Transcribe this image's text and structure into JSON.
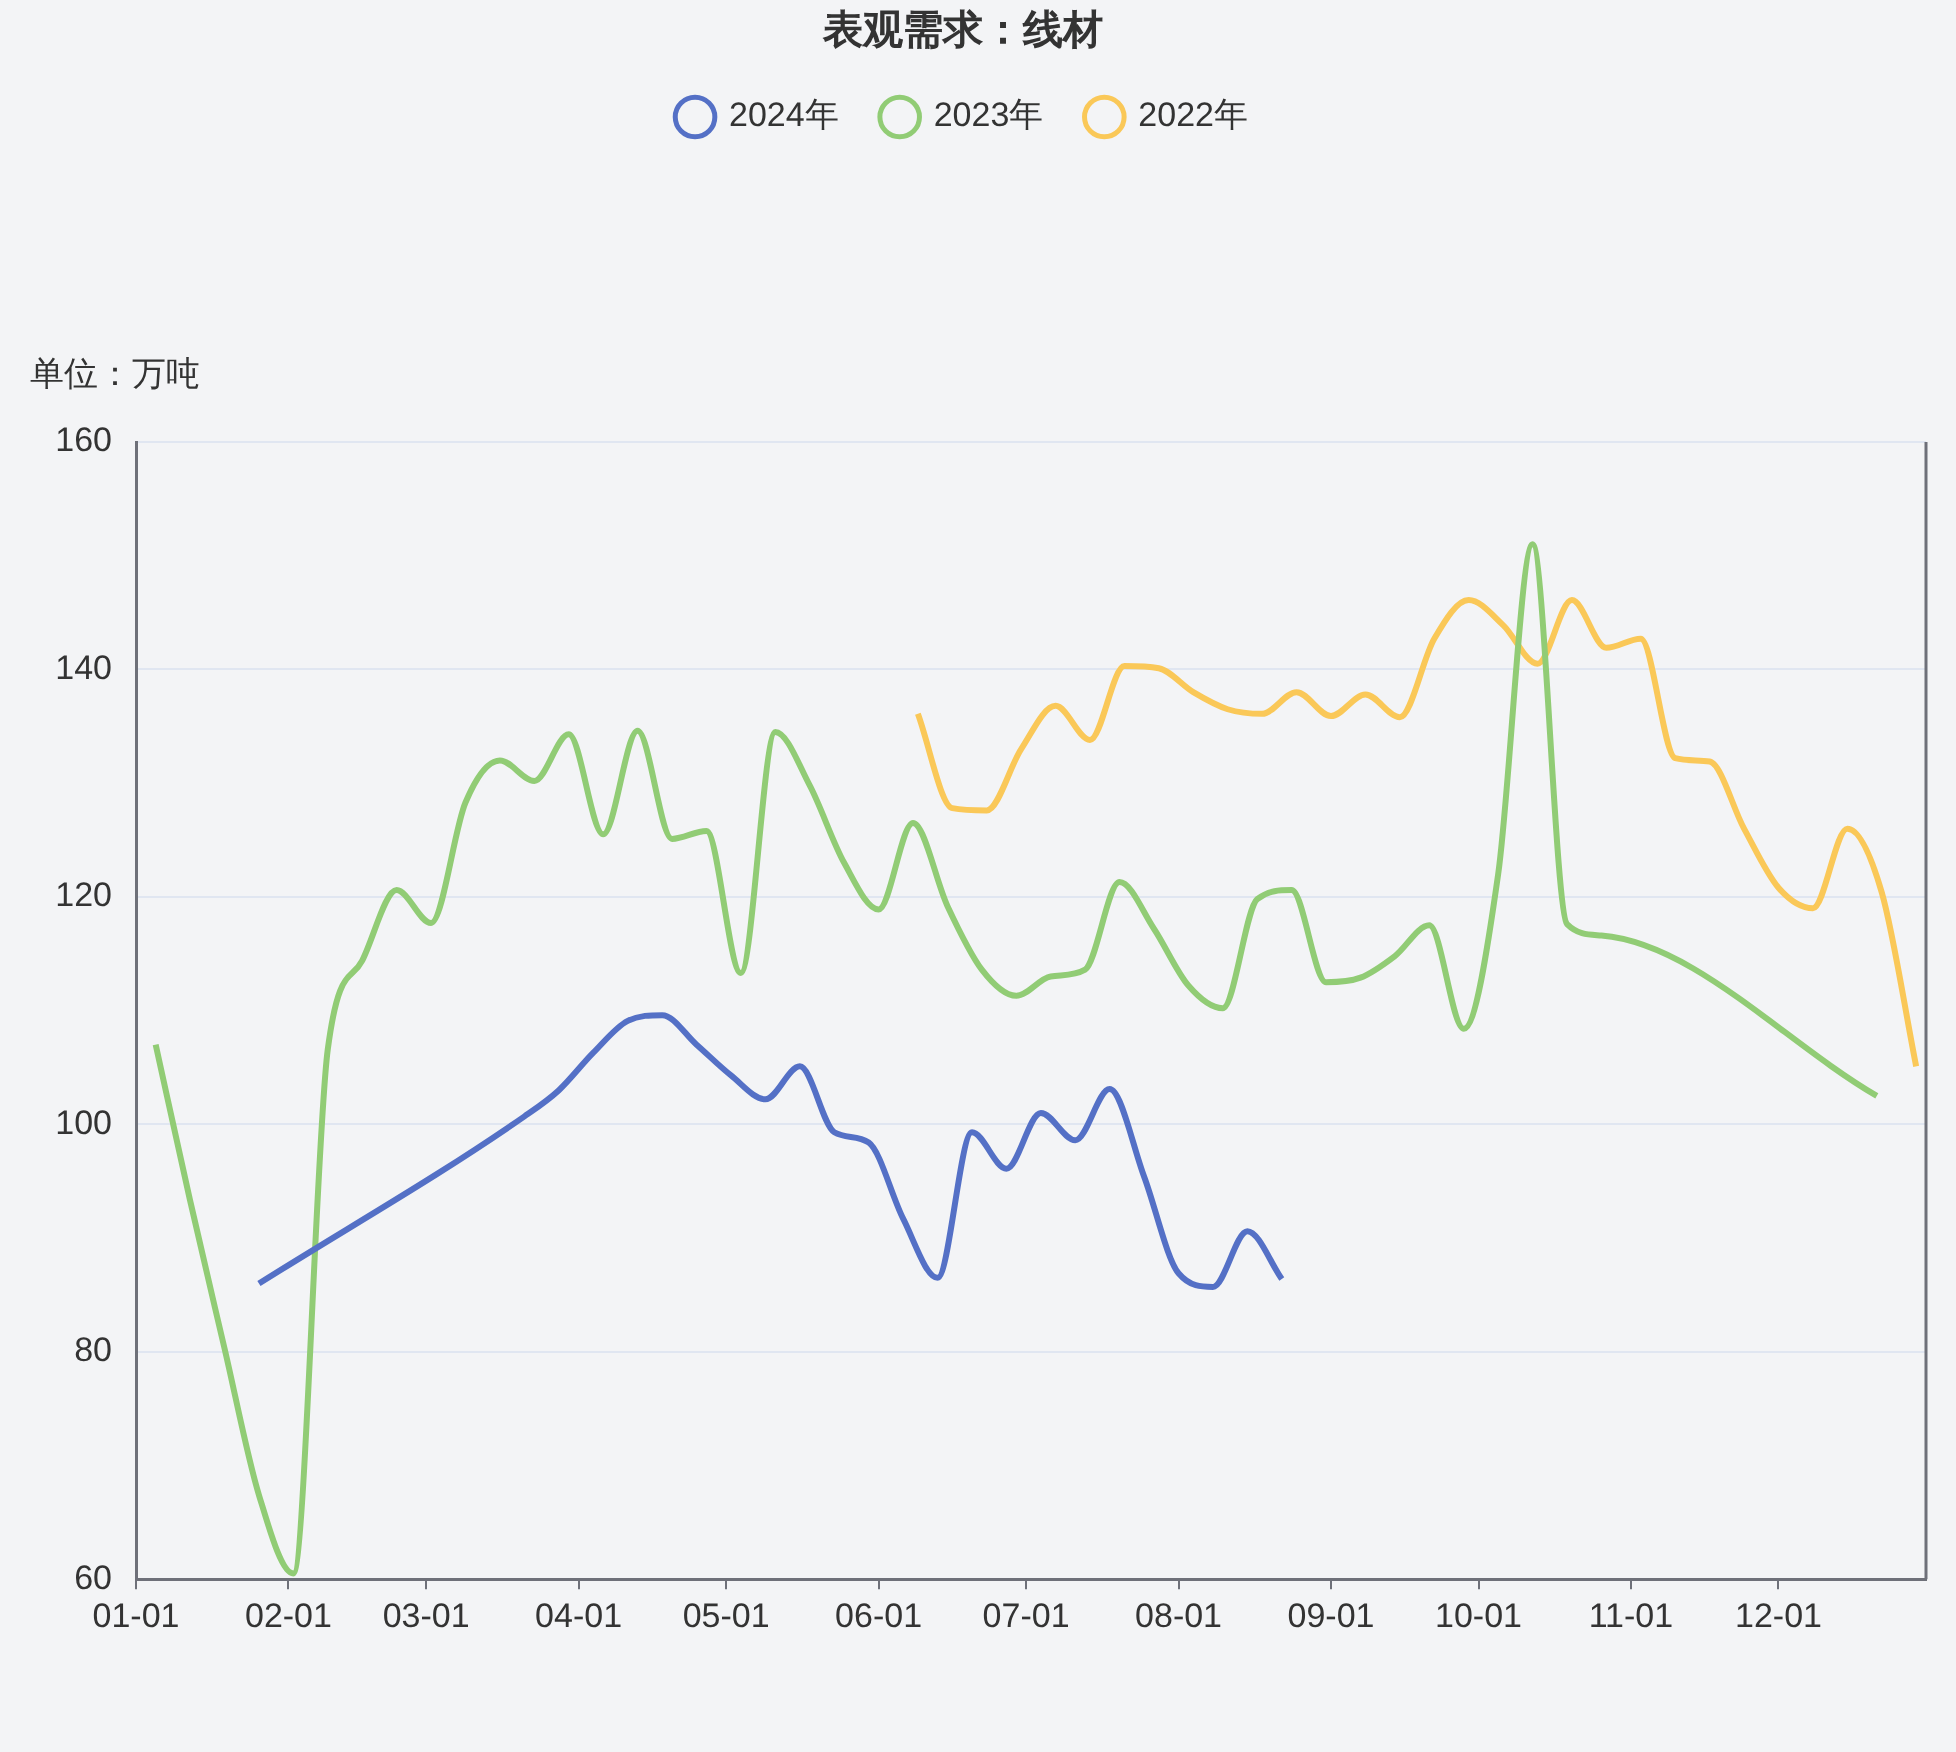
{
  "chart_data": {
    "type": "line",
    "title": "表观需求：线材",
    "ylabel": "单位：万吨",
    "xlim": [
      "--01-01",
      "--12-31"
    ],
    "xticks": [
      {
        "value": "--01-01",
        "label": "01-01"
      },
      {
        "value": "--02-01",
        "label": "02-01"
      },
      {
        "value": "--03-01",
        "label": "03-01"
      },
      {
        "value": "--04-01",
        "label": "04-01"
      },
      {
        "value": "--05-01",
        "label": "05-01"
      },
      {
        "value": "--06-01",
        "label": "06-01"
      },
      {
        "value": "--07-01",
        "label": "07-01"
      },
      {
        "value": "--08-01",
        "label": "08-01"
      },
      {
        "value": "--09-01",
        "label": "09-01"
      },
      {
        "value": "--10-01",
        "label": "10-01"
      },
      {
        "value": "--11-01",
        "label": "11-01"
      },
      {
        "value": "--12-01",
        "label": "12-01"
      }
    ],
    "ylim": [
      60,
      160
    ],
    "yticks": [
      60,
      80,
      100,
      120,
      140,
      160
    ],
    "grid": "y",
    "legend": "top",
    "series": [
      {
        "name": "2024年",
        "color": "#5470c6",
        "x": [
          "--01-26",
          "--03-21",
          "--03-28",
          "--04-04",
          "--04-11",
          "--04-18",
          "--04-25",
          "--05-02",
          "--05-09",
          "--05-16",
          "--05-23",
          "--05-30",
          "--06-06",
          "--06-13",
          "--06-20",
          "--06-27",
          "--07-04",
          "--07-11",
          "--07-18",
          "--07-25",
          "--08-01",
          "--08-08",
          "--08-15",
          "--08-22"
        ],
        "values": [
          86.0,
          100.7,
          103.0,
          106.3,
          109.1,
          109.6,
          107.0,
          104.3,
          102.2,
          105.1,
          99.3,
          98.4,
          91.7,
          86.5,
          99.3,
          96.1,
          101.0,
          98.6,
          103.1,
          95.4,
          86.9,
          85.7,
          90.6,
          86.4
        ]
      },
      {
        "name": "2023年",
        "color": "#91cc75",
        "x": [
          "--01-05",
          "--01-12",
          "--01-19",
          "--01-26",
          "--02-02",
          "--02-09",
          "--02-16",
          "--02-23",
          "--03-02",
          "--03-09",
          "--03-16",
          "--03-23",
          "--03-30",
          "--04-06",
          "--04-13",
          "--04-20",
          "--04-27",
          "--05-04",
          "--05-11",
          "--05-18",
          "--05-25",
          "--06-01",
          "--06-08",
          "--06-15",
          "--06-22",
          "--06-29",
          "--07-06",
          "--07-13",
          "--07-20",
          "--07-27",
          "--08-03",
          "--08-10",
          "--08-17",
          "--08-24",
          "--08-31",
          "--09-07",
          "--09-14",
          "--09-21",
          "--09-28",
          "--10-05",
          "--10-12",
          "--10-19",
          "--10-26",
          "--12-21"
        ],
        "values": [
          107.0,
          93.3,
          80.3,
          67.4,
          60.5,
          106.6,
          114.4,
          120.6,
          117.7,
          128.3,
          132.0,
          130.2,
          134.3,
          125.5,
          134.6,
          125.1,
          125.8,
          113.3,
          134.5,
          129.8,
          123.0,
          118.9,
          126.5,
          119.2,
          113.6,
          111.3,
          113.0,
          113.6,
          121.3,
          117.2,
          112.2,
          110.2,
          119.8,
          120.6,
          112.5,
          112.9,
          114.8,
          117.5,
          108.4,
          122.0,
          151.0,
          117.6,
          116.6,
          102.5
        ]
      },
      {
        "name": "2022年",
        "color": "#fac858",
        "x": [
          "--06-09",
          "--06-16",
          "--06-23",
          "--06-30",
          "--07-07",
          "--07-14",
          "--07-21",
          "--07-28",
          "--08-04",
          "--08-11",
          "--08-18",
          "--08-25",
          "--09-01",
          "--09-08",
          "--09-15",
          "--09-22",
          "--09-29",
          "--10-06",
          "--10-13",
          "--10-20",
          "--10-27",
          "--11-03",
          "--11-10",
          "--11-17",
          "--11-24",
          "--12-01",
          "--12-08",
          "--12-15",
          "--12-22",
          "--12-29"
        ],
        "values": [
          136.1,
          127.8,
          127.6,
          133.0,
          136.8,
          133.8,
          140.3,
          140.1,
          138.0,
          136.5,
          136.1,
          138.0,
          135.9,
          137.8,
          135.8,
          142.7,
          146.1,
          143.9,
          140.5,
          146.1,
          141.9,
          142.7,
          132.2,
          131.9,
          126.0,
          120.8,
          119.0,
          126.0,
          120.4,
          105.1
        ]
      }
    ]
  }
}
